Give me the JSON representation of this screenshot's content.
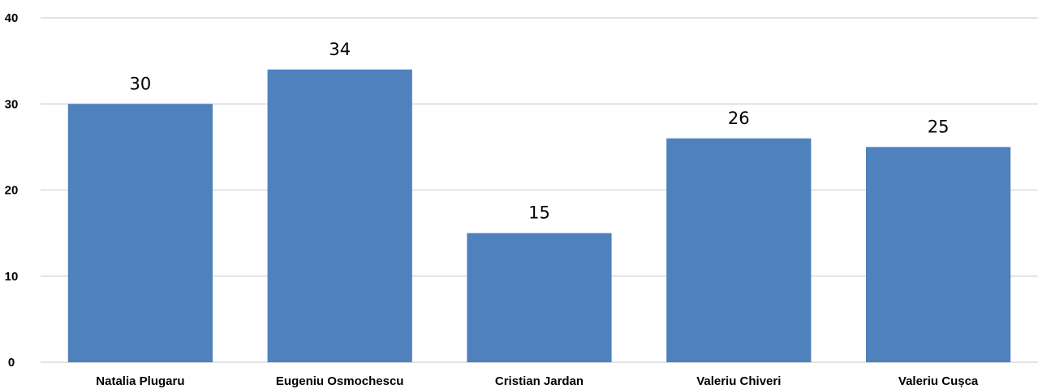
{
  "chart_data": {
    "type": "bar",
    "title": "",
    "xlabel": "",
    "ylabel": "",
    "categories": [
      "Natalia Plugaru",
      "Eugeniu Osmochescu",
      "Cristian Jardan",
      "Valeriu Chiveri",
      "Valeriu Cușca"
    ],
    "values": [
      30,
      34,
      15,
      26,
      25
    ],
    "data_labels": [
      "30",
      "34",
      "15",
      "26",
      "25"
    ],
    "ylim": [
      0,
      40
    ],
    "yticks": [
      0,
      10,
      20,
      30,
      40
    ],
    "ytick_labels": [
      "0",
      "10",
      "20",
      "30",
      "40"
    ],
    "grid": true,
    "legend": "none",
    "bar_color": "#4f81bd"
  }
}
